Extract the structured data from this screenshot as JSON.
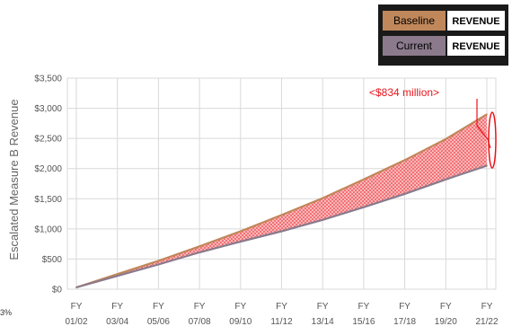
{
  "chart_data": {
    "type": "line",
    "title": "",
    "xlabel": "",
    "ylabel": "Escalated Measure B Revenue",
    "x_line1": [
      "FY",
      "FY",
      "FY",
      "FY",
      "FY",
      "FY",
      "FY",
      "FY",
      "FY",
      "FY",
      "FY"
    ],
    "x_line2": [
      "01/02",
      "03/04",
      "05/06",
      "07/08",
      "09/10",
      "11/12",
      "13/14",
      "15/16",
      "17/18",
      "19/20",
      "21/22"
    ],
    "yticks": [
      "$0",
      "$500",
      "$1,000",
      "$1,500",
      "$2,000",
      "$2,500",
      "$3,000",
      "$3,500"
    ],
    "ylim": [
      0,
      3500
    ],
    "grid": true,
    "legend_position": "top-right",
    "series": [
      {
        "name": "Baseline",
        "legend_tag": "REVENUE",
        "color": "#c0875a",
        "values": [
          30,
          250,
          470,
          710,
          960,
          1230,
          1510,
          1820,
          2140,
          2490,
          2900
        ]
      },
      {
        "name": "Current",
        "legend_tag": "REVENUE",
        "color": "#8a7a8c",
        "values": [
          30,
          220,
          410,
          610,
          790,
          960,
          1150,
          1360,
          1580,
          1820,
          2050
        ]
      }
    ],
    "annotation": "<$834 million>",
    "fill_color": "#f37a7e",
    "annotation_color": "#e8141b",
    "stray_text": "3%"
  }
}
